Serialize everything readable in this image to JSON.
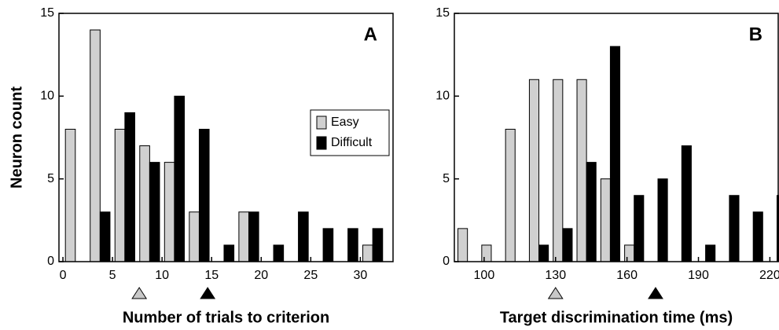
{
  "chart_data": [
    {
      "type": "bar",
      "panel_label": "A",
      "ylabel": "Neuron count",
      "xlabel": "Number of trials to criterion",
      "x": [
        1.25,
        3.75,
        6.25,
        8.75,
        11.25,
        13.75,
        16.25,
        18.75,
        21.25,
        23.75,
        26.25,
        28.75,
        31.25
      ],
      "series": [
        {
          "name": "Easy",
          "color": "#d0d0d0",
          "values": [
            8,
            14,
            8,
            7,
            6,
            3,
            0,
            3,
            0,
            0,
            0,
            0,
            1
          ]
        },
        {
          "name": "Difficult",
          "color": "#000000",
          "values": [
            0,
            3,
            9,
            6,
            10,
            8,
            1,
            3,
            1,
            3,
            2,
            2,
            2
          ]
        }
      ],
      "bin_width": 2.5,
      "mean_markers": [
        {
          "x": 7.7,
          "color": "#c8c8c8"
        },
        {
          "x": 14.6,
          "color": "#000000"
        }
      ],
      "xlim": [
        -0.4,
        33.3
      ],
      "xticks": [
        0,
        5,
        10,
        15,
        20,
        25,
        30
      ],
      "ylim": [
        0,
        15
      ],
      "yticks": [
        0,
        5,
        10,
        15
      ],
      "legend": "center right"
    },
    {
      "type": "bar",
      "panel_label": "B",
      "xlabel": "Target discrimination time (ms)",
      "x": [
        93,
        103,
        113,
        123,
        133,
        143,
        153,
        163,
        173,
        183,
        193,
        203,
        213,
        223
      ],
      "series": [
        {
          "color": "#d0d0d0",
          "values": [
            2,
            1,
            8,
            11,
            11,
            11,
            5,
            1,
            0,
            0,
            0,
            0,
            0,
            0
          ]
        },
        {
          "color": "#000000",
          "values": [
            0,
            0,
            0,
            1,
            2,
            6,
            13,
            4,
            5,
            7,
            1,
            4,
            3,
            4
          ]
        }
      ],
      "bin_width": 10,
      "mean_markers": [
        {
          "x": 130,
          "color": "#c8c8c8"
        },
        {
          "x": 172,
          "color": "#000000"
        }
      ],
      "xlim": [
        87.5,
        223.5
      ],
      "xticks": [
        100,
        130,
        160,
        190,
        220
      ],
      "ylim": [
        0,
        15
      ],
      "yticks": [
        0,
        5,
        10,
        15
      ]
    }
  ]
}
